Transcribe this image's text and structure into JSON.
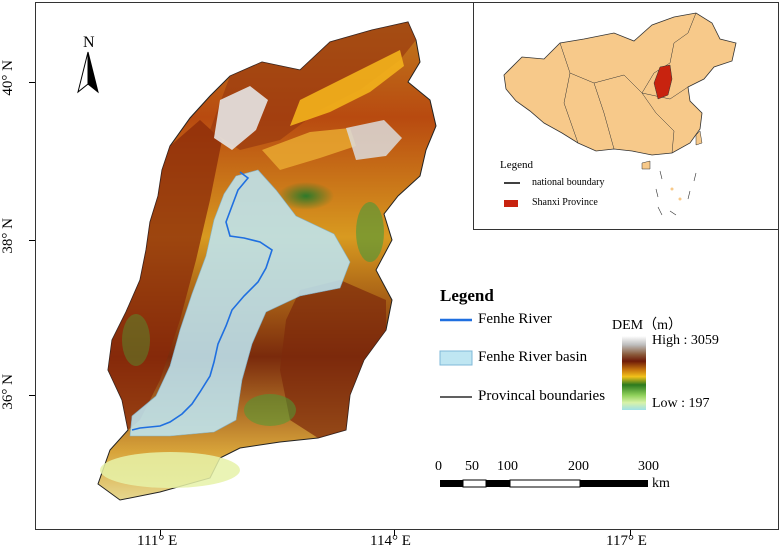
{
  "north_arrow": {
    "label": "N"
  },
  "latitude_labels": [
    "40° N",
    "38° N",
    "36° N"
  ],
  "longitude_labels": [
    "111° E",
    "114° E",
    "117° E"
  ],
  "legend": {
    "title": "Legend",
    "fenhe_river": "Fenhe River",
    "fenhe_basin": "Fenhe River basin",
    "provincial_boundaries": "Provincal boundaries"
  },
  "dem": {
    "title": "DEM（m）",
    "high_label": "High : 3059",
    "low_label": "Low : 197"
  },
  "scale_bar": {
    "ticks": [
      "0",
      "50",
      "100",
      "200",
      "300"
    ],
    "unit": "km"
  },
  "inset": {
    "legend_title": "Legend",
    "national_boundary": "national boundary",
    "shanxi_province": "Shanxi Province"
  },
  "colors": {
    "river": "#1f6fe0",
    "basin_fill": "#bfe6f2",
    "china_fill": "#f7c98a",
    "shanxi": "#c8230f"
  }
}
